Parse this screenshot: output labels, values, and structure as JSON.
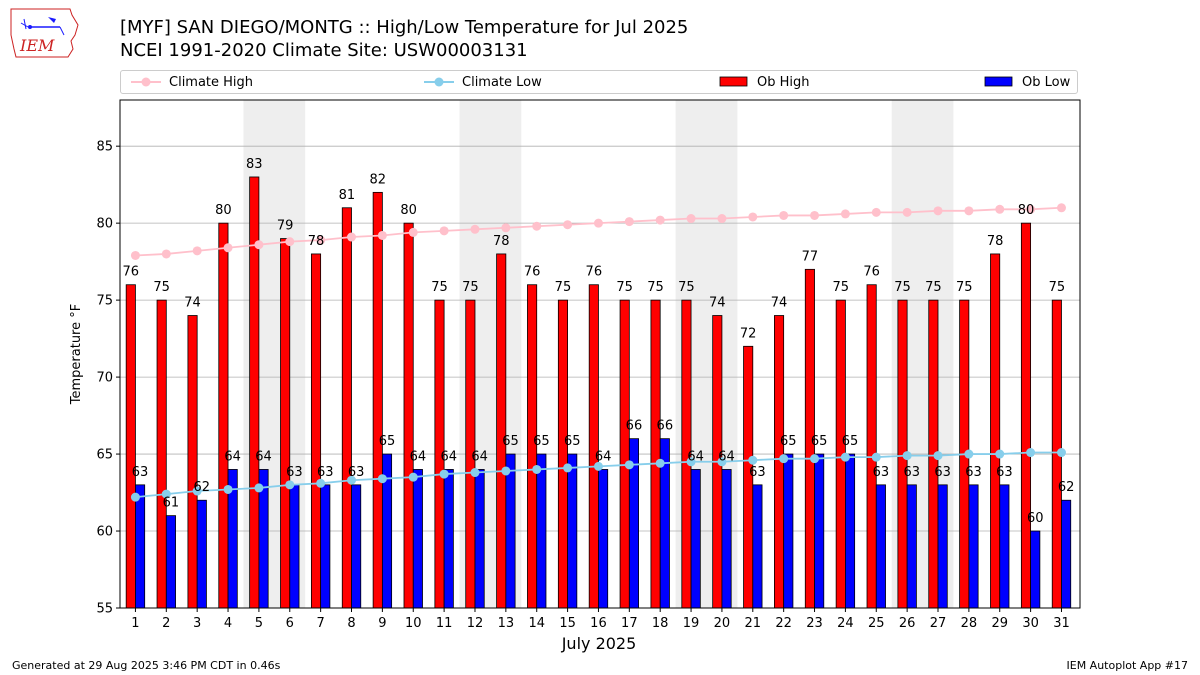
{
  "header": {
    "title_line1": "[MYF] SAN DIEGO/MONTG :: High/Low Temperature for Jul 2025",
    "title_line2": "NCEI 1991-2020 Climate Site: USW00003131"
  },
  "logo": {
    "text": "IEM",
    "icon": "iowa-state-logo"
  },
  "footer": {
    "generated": "Generated at 29 Aug 2025 3:46 PM CDT in 0.46s",
    "app": "IEM Autoplot App #17"
  },
  "colors": {
    "ob_high": "#ff0000",
    "ob_low": "#0000ff",
    "climate_high": "#ffc0cb",
    "climate_low": "#87ceeb",
    "weekend_shade": "#eeeeee",
    "grid": "#b0b0b0"
  },
  "legend": {
    "climate_high": "Climate High",
    "climate_low": "Climate Low",
    "ob_high": "Ob High",
    "ob_low": "Ob Low"
  },
  "chart_data": {
    "type": "bar",
    "xlabel": "July 2025",
    "ylabel": "Temperature °F",
    "ylim": [
      55,
      88
    ],
    "yticks": [
      55,
      60,
      65,
      70,
      75,
      80,
      85
    ],
    "grid": "horizontal",
    "legend_position": "top",
    "categories": [
      1,
      2,
      3,
      4,
      5,
      6,
      7,
      8,
      9,
      10,
      11,
      12,
      13,
      14,
      15,
      16,
      17,
      18,
      19,
      20,
      21,
      22,
      23,
      24,
      25,
      26,
      27,
      28,
      29,
      30,
      31
    ],
    "shaded_days": [
      [
        5,
        6
      ],
      [
        12,
        13
      ],
      [
        19,
        20
      ],
      [
        26,
        27
      ]
    ],
    "series": [
      {
        "name": "Ob High",
        "kind": "bar",
        "values": [
          76,
          75,
          74,
          80,
          83,
          79,
          78,
          81,
          82,
          80,
          75,
          75,
          78,
          76,
          75,
          76,
          75,
          75,
          75,
          74,
          72,
          74,
          77,
          75,
          76,
          75,
          75,
          75,
          78,
          80,
          75
        ]
      },
      {
        "name": "Ob Low",
        "kind": "bar",
        "values": [
          63,
          61,
          62,
          64,
          64,
          63,
          63,
          63,
          65,
          64,
          64,
          64,
          65,
          65,
          65,
          64,
          66,
          66,
          64,
          64,
          63,
          65,
          65,
          65,
          63,
          63,
          63,
          63,
          63,
          60,
          62
        ]
      },
      {
        "name": "Climate High",
        "kind": "line",
        "values": [
          77.9,
          78.0,
          78.2,
          78.4,
          78.6,
          78.8,
          78.9,
          79.1,
          79.2,
          79.4,
          79.5,
          79.6,
          79.7,
          79.8,
          79.9,
          80.0,
          80.1,
          80.2,
          80.3,
          80.3,
          80.4,
          80.5,
          80.5,
          80.6,
          80.7,
          80.7,
          80.8,
          80.8,
          80.9,
          80.9,
          81.0
        ]
      },
      {
        "name": "Climate Low",
        "kind": "line",
        "values": [
          62.2,
          62.4,
          62.6,
          62.7,
          62.8,
          63.0,
          63.1,
          63.3,
          63.4,
          63.5,
          63.7,
          63.8,
          63.9,
          64.0,
          64.1,
          64.2,
          64.3,
          64.4,
          64.5,
          64.5,
          64.6,
          64.7,
          64.7,
          64.8,
          64.8,
          64.9,
          64.9,
          65.0,
          65.0,
          65.1,
          65.1
        ]
      }
    ]
  }
}
